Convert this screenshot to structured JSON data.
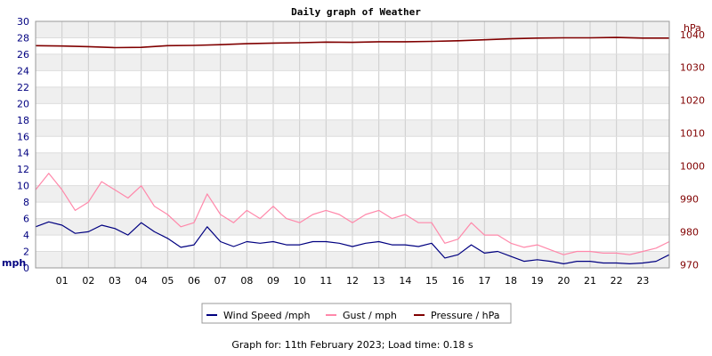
{
  "chart_data": {
    "type": "line",
    "title": "Daily graph of Weather",
    "y_left_label": "mph",
    "y_left_range": [
      0,
      30
    ],
    "y_left_ticks": [
      "0",
      "2",
      "4",
      "6",
      "8",
      "10",
      "12",
      "14",
      "16",
      "18",
      "20",
      "22",
      "24",
      "26",
      "28",
      "30"
    ],
    "y_right_label": "hPa",
    "y_right_range": [
      969,
      1044
    ],
    "y_right_ticks": [
      "970",
      "980",
      "990",
      "1000",
      "1010",
      "1020",
      "1030",
      "1040"
    ],
    "x_range": [
      0,
      24
    ],
    "x_tick_labels": [
      "01",
      "02",
      "03",
      "04",
      "05",
      "06",
      "07",
      "08",
      "09",
      "10",
      "11",
      "12",
      "13",
      "14",
      "15",
      "16",
      "17",
      "18",
      "19",
      "20",
      "21",
      "22",
      "23"
    ],
    "grid": true,
    "legend_position": "bottom",
    "colors": {
      "wind": "#000080",
      "gust": "#ff88aa",
      "pressure": "#800000",
      "band": "#efefef",
      "grid": "#cccccc",
      "left_axis_text": "#000080",
      "right_axis_text": "#800000"
    },
    "series": [
      {
        "name": "Wind Speed /mph",
        "key": "wind",
        "x": [
          0,
          0.5,
          1,
          1.5,
          2,
          2.5,
          3,
          3.5,
          4,
          4.5,
          5,
          5.5,
          6,
          6.5,
          7,
          7.5,
          8,
          8.5,
          9,
          9.5,
          10,
          10.5,
          11,
          11.5,
          12,
          12.5,
          13,
          13.5,
          14,
          14.5,
          15,
          15.5,
          16,
          16.5,
          17,
          17.5,
          18,
          18.5,
          19,
          19.5,
          20,
          20.5,
          21,
          21.5,
          22,
          22.5,
          23,
          23.5,
          24
        ],
        "values": [
          5.0,
          5.6,
          5.2,
          4.2,
          4.4,
          5.2,
          4.8,
          4.0,
          5.5,
          4.4,
          3.6,
          2.5,
          2.8,
          5.0,
          3.2,
          2.6,
          3.2,
          3.0,
          3.2,
          2.8,
          2.8,
          3.2,
          3.2,
          3.0,
          2.6,
          3.0,
          3.2,
          2.8,
          2.8,
          2.6,
          3.0,
          1.2,
          1.6,
          2.8,
          1.8,
          2.0,
          1.4,
          0.8,
          1.0,
          0.8,
          0.5,
          0.8,
          0.8,
          0.6,
          0.6,
          0.5,
          0.6,
          0.8,
          1.6
        ]
      },
      {
        "name": "Gust / mph",
        "key": "gust",
        "x": [
          0,
          0.5,
          1,
          1.5,
          2,
          2.5,
          3,
          3.5,
          4,
          4.5,
          5,
          5.5,
          6,
          6.5,
          7,
          7.5,
          8,
          8.5,
          9,
          9.5,
          10,
          10.5,
          11,
          11.5,
          12,
          12.5,
          13,
          13.5,
          14,
          14.5,
          15,
          15.5,
          16,
          16.5,
          17,
          17.5,
          18,
          18.5,
          19,
          19.5,
          20,
          20.5,
          21,
          21.5,
          22,
          22.5,
          23,
          23.5,
          24
        ],
        "values": [
          9.5,
          11.5,
          9.5,
          7.0,
          8.0,
          10.5,
          9.5,
          8.5,
          10.0,
          7.5,
          6.5,
          5.0,
          5.5,
          9.0,
          6.5,
          5.5,
          7.0,
          6.0,
          7.5,
          6.0,
          5.5,
          6.5,
          7.0,
          6.5,
          5.5,
          6.5,
          7.0,
          6.0,
          6.5,
          5.5,
          5.5,
          3.0,
          3.5,
          5.5,
          4.0,
          4.0,
          3.0,
          2.5,
          2.8,
          2.2,
          1.6,
          2.0,
          2.0,
          1.8,
          1.8,
          1.6,
          2.0,
          2.4,
          3.2
        ]
      },
      {
        "name": "Pressure / hPa",
        "key": "pressure",
        "x": [
          0,
          1,
          2,
          3,
          4,
          5,
          6,
          7,
          8,
          9,
          10,
          11,
          12,
          13,
          14,
          15,
          16,
          17,
          18,
          19,
          20,
          21,
          22,
          23,
          24
        ],
        "values": [
          1036.6,
          1036.5,
          1036.3,
          1036.0,
          1036.1,
          1036.6,
          1036.7,
          1036.9,
          1037.2,
          1037.4,
          1037.5,
          1037.7,
          1037.6,
          1037.8,
          1037.8,
          1037.9,
          1038.1,
          1038.4,
          1038.7,
          1038.9,
          1039.0,
          1039.0,
          1039.1,
          1038.9,
          1038.9
        ]
      }
    ]
  },
  "footer": "Graph for: 11th February 2023; Load time: 0.18 s"
}
